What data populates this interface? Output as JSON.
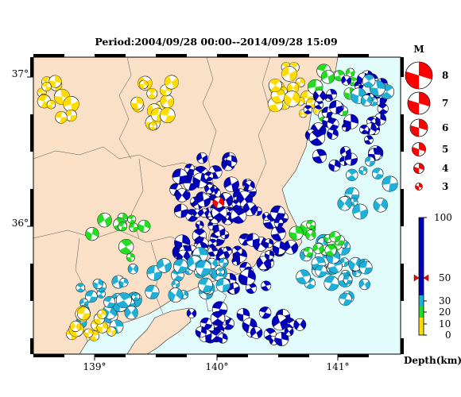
{
  "title": "Period:2004/09/28 00:00--2014/09/28 15:09",
  "axes": {
    "longitude_ticks": [
      "139°",
      "140°",
      "141°"
    ],
    "latitude_ticks": [
      "37°",
      "36°"
    ]
  },
  "magnitude_legend": {
    "header": "M",
    "labels": [
      "8",
      "7",
      "6",
      "5",
      "4",
      "3"
    ]
  },
  "depth_scale": {
    "label": "Depth(km)",
    "ticks": [
      "100",
      "50",
      "30",
      "20",
      "10",
      "0"
    ],
    "marker_value": 50,
    "bands": [
      {
        "range": [
          30,
          100
        ],
        "color": "#0000bb"
      },
      {
        "range": [
          20,
          30
        ],
        "color": "#1fb0d8"
      },
      {
        "range": [
          10,
          20
        ],
        "color": "#22dd22"
      },
      {
        "range": [
          0,
          10
        ],
        "color": "#ffdd00"
      }
    ]
  },
  "colors": {
    "land": "#fae0c6",
    "sea": "#e2fbfb",
    "frame_dark": "#000000",
    "mainshock": "#ff0000"
  }
}
